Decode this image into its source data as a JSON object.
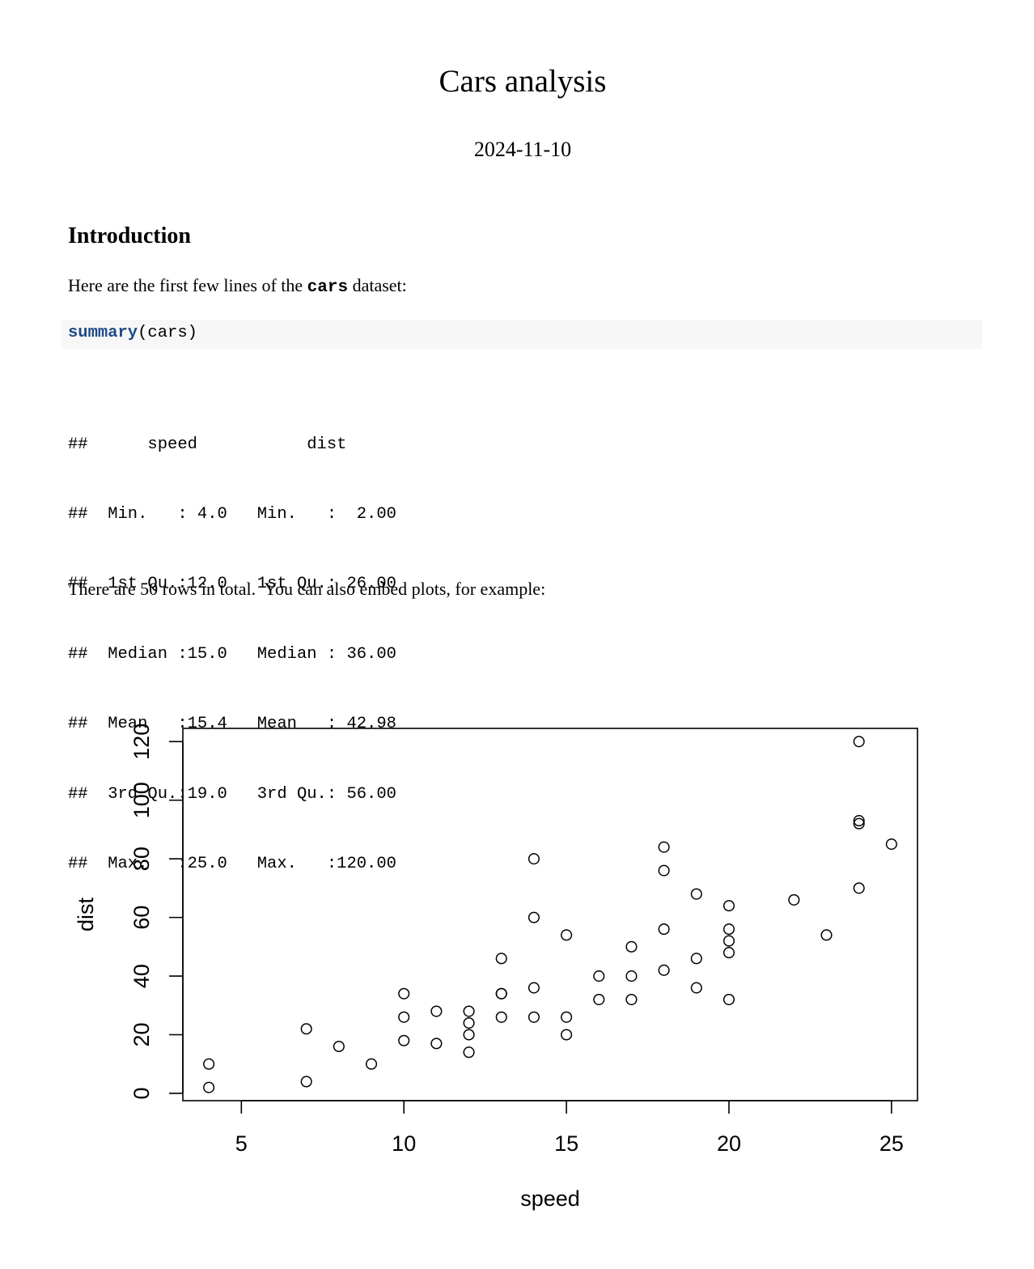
{
  "document": {
    "title": "Cars analysis",
    "date": "2024-11-10",
    "intro_heading": "Introduction",
    "intro_text_before": "Here are the first few lines of the ",
    "intro_code": "cars",
    "intro_text_after": " dataset:",
    "code_function": "summary",
    "code_args": "(cars)",
    "output_lines": [
      "##      speed           dist       ",
      "##  Min.   : 4.0   Min.   :  2.00  ",
      "##  1st Qu.:12.0   1st Qu.: 26.00  ",
      "##  Median :15.0   Median : 36.00  ",
      "##  Mean   :15.4   Mean   : 42.98  ",
      "##  3rd Qu.:19.0   3rd Qu.: 56.00  ",
      "##  Max.   :25.0   Max.   :120.00  "
    ],
    "rows_text": "There are 50 rows in total.  You can also embed plots, for example:"
  },
  "chart_data": {
    "type": "scatter",
    "title": "",
    "xlabel": "speed",
    "ylabel": "dist",
    "xlim": [
      3.2,
      25.8
    ],
    "ylim": [
      -2.5,
      124.5
    ],
    "xticks": [
      5,
      10,
      15,
      20,
      25
    ],
    "yticks": [
      0,
      20,
      40,
      60,
      80,
      100,
      120
    ],
    "grid": false,
    "marker": "open-circle",
    "x": [
      4,
      4,
      7,
      7,
      8,
      9,
      10,
      10,
      10,
      11,
      11,
      12,
      12,
      12,
      12,
      13,
      13,
      13,
      13,
      14,
      14,
      14,
      14,
      15,
      15,
      15,
      16,
      16,
      17,
      17,
      17,
      18,
      18,
      18,
      18,
      19,
      19,
      19,
      20,
      20,
      20,
      20,
      20,
      22,
      23,
      24,
      24,
      24,
      24,
      25
    ],
    "y": [
      2,
      10,
      4,
      22,
      16,
      10,
      18,
      26,
      34,
      17,
      28,
      14,
      20,
      24,
      28,
      26,
      34,
      34,
      46,
      26,
      36,
      60,
      80,
      20,
      26,
      54,
      32,
      40,
      32,
      40,
      50,
      42,
      56,
      76,
      84,
      36,
      46,
      68,
      32,
      48,
      52,
      56,
      64,
      66,
      54,
      70,
      92,
      93,
      120,
      85
    ]
  }
}
